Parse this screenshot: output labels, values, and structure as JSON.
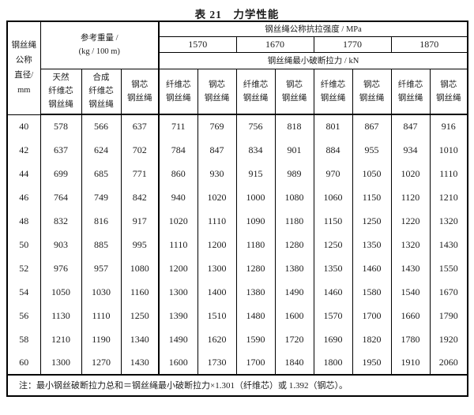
{
  "title": "表 21　力学性能",
  "colors": {
    "border": "#000000",
    "text": "#1c1c1c",
    "background": "#ffffff"
  },
  "table": {
    "header": {
      "diameter_lines": [
        "钢丝绳",
        "公称",
        "直径/",
        "mm"
      ],
      "ref_weight_lines": [
        "参考重量 /",
        "(kg / 100 m)"
      ],
      "tensile_strength": "钢丝绳公称抗拉强度 / MPa",
      "breaking_force": "钢丝绳最小破断拉力 / kN",
      "grades": [
        "1570",
        "1670",
        "1770",
        "1870"
      ],
      "weight_cols": [
        {
          "lines": [
            "天然",
            "纤维芯",
            "钢丝绳"
          ]
        },
        {
          "lines": [
            "合成",
            "纤维芯",
            "钢丝绳"
          ]
        },
        {
          "lines": [
            "钢芯",
            "钢丝绳"
          ]
        }
      ],
      "core_pair": [
        {
          "lines": [
            "纤维芯",
            "钢丝绳"
          ]
        },
        {
          "lines": [
            "钢芯",
            "钢丝绳"
          ]
        }
      ]
    },
    "rows": [
      [
        40,
        578,
        566,
        637,
        711,
        769,
        756,
        818,
        801,
        867,
        847,
        916
      ],
      [
        42,
        637,
        624,
        702,
        784,
        847,
        834,
        901,
        884,
        955,
        934,
        1010
      ],
      [
        44,
        699,
        685,
        771,
        860,
        930,
        915,
        989,
        970,
        1050,
        1020,
        1110
      ],
      [
        46,
        764,
        749,
        842,
        940,
        1020,
        1000,
        1080,
        1060,
        1150,
        1120,
        1210
      ],
      [
        48,
        832,
        816,
        917,
        1020,
        1110,
        1090,
        1180,
        1150,
        1250,
        1220,
        1320
      ],
      [
        50,
        903,
        885,
        995,
        1110,
        1200,
        1180,
        1280,
        1250,
        1350,
        1320,
        1430
      ],
      [
        52,
        976,
        957,
        1080,
        1200,
        1300,
        1280,
        1380,
        1350,
        1460,
        1430,
        1550
      ],
      [
        54,
        1050,
        1030,
        1160,
        1300,
        1400,
        1380,
        1490,
        1460,
        1580,
        1540,
        1670
      ],
      [
        56,
        1130,
        1110,
        1250,
        1390,
        1510,
        1480,
        1600,
        1570,
        1700,
        1660,
        1790
      ],
      [
        58,
        1210,
        1190,
        1340,
        1490,
        1620,
        1590,
        1720,
        1690,
        1820,
        1780,
        1920
      ],
      [
        60,
        1300,
        1270,
        1430,
        1600,
        1730,
        1700,
        1840,
        1800,
        1950,
        1910,
        2060
      ]
    ],
    "note": "注：最小钢丝破断拉力总和＝钢丝绳最小破断拉力×1.301（纤维芯）或 1.392（钢芯）。"
  }
}
